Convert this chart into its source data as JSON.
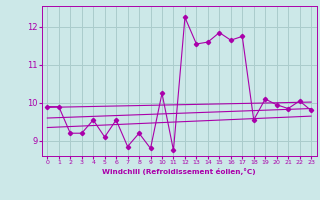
{
  "title": "",
  "xlabel": "Windchill (Refroidissement éolien,°C)",
  "bg_color": "#cce8e8",
  "grid_color": "#aacccc",
  "line_color": "#aa00aa",
  "xlim": [
    -0.5,
    23.5
  ],
  "ylim": [
    8.6,
    12.55
  ],
  "yticks": [
    9,
    10,
    11,
    12
  ],
  "xticks": [
    0,
    1,
    2,
    3,
    4,
    5,
    6,
    7,
    8,
    9,
    10,
    11,
    12,
    13,
    14,
    15,
    16,
    17,
    18,
    19,
    20,
    21,
    22,
    23
  ],
  "main_x": [
    0,
    1,
    2,
    3,
    4,
    5,
    6,
    7,
    8,
    9,
    10,
    11,
    12,
    13,
    14,
    15,
    16,
    17,
    18,
    19,
    20,
    21,
    22,
    23
  ],
  "main_y": [
    9.9,
    9.9,
    9.2,
    9.2,
    9.55,
    9.1,
    9.55,
    8.85,
    9.2,
    8.8,
    10.25,
    8.75,
    12.25,
    11.55,
    11.6,
    11.85,
    11.65,
    11.75,
    9.55,
    10.1,
    9.95,
    9.85,
    10.05,
    9.8
  ],
  "line2_x": [
    0,
    23
  ],
  "line2_y": [
    9.88,
    10.02
  ],
  "line3_x": [
    0,
    23
  ],
  "line3_y": [
    9.6,
    9.85
  ],
  "line4_x": [
    0,
    23
  ],
  "line4_y": [
    9.35,
    9.65
  ]
}
